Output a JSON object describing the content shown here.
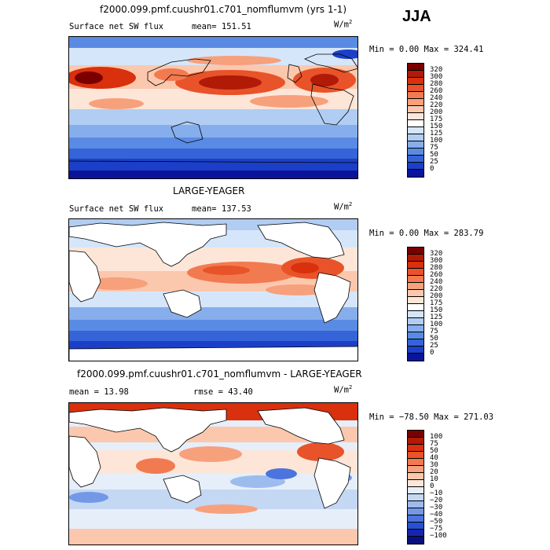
{
  "season": "JJA",
  "panels": [
    {
      "title": "f2000.099.pmf.cuushr01.c701_nomflumvm (yrs 1-1)",
      "variable": "Surface net SW flux",
      "stat1": "mean=  151.51",
      "stat2": "",
      "units": "W/m",
      "units_exp": "2",
      "minmax": "Min =    0.00 Max = 324.41",
      "land_masked": false,
      "colorbar_labels": [
        "320",
        "300",
        "280",
        "260",
        "240",
        "220",
        "200",
        "175",
        "150",
        "125",
        "100",
        "75",
        "50",
        "25",
        "0"
      ],
      "colors": [
        "#7a0000",
        "#b01a06",
        "#d9300e",
        "#e8532a",
        "#f27a50",
        "#f7a07c",
        "#fbc8ae",
        "#fde6d8",
        "#ffffff",
        "#d6e6fa",
        "#b1cdf3",
        "#87aeec",
        "#5a8be4",
        "#3464d8",
        "#1b3fc8",
        "#0a149a"
      ]
    },
    {
      "title": "LARGE-YEAGER",
      "variable": "Surface net SW flux",
      "stat1": "mean=  137.53",
      "stat2": "",
      "units": "W/m",
      "units_exp": "2",
      "minmax": "Min =    0.00 Max = 283.79",
      "land_masked": true,
      "colorbar_labels": [
        "320",
        "300",
        "280",
        "260",
        "240",
        "220",
        "200",
        "175",
        "150",
        "125",
        "100",
        "75",
        "50",
        "25",
        "0"
      ],
      "colors": [
        "#7a0000",
        "#b01a06",
        "#d9300e",
        "#e8532a",
        "#f27a50",
        "#f7a07c",
        "#fbc8ae",
        "#fde6d8",
        "#ffffff",
        "#d6e6fa",
        "#b1cdf3",
        "#87aeec",
        "#5a8be4",
        "#3464d8",
        "#1b3fc8",
        "#0a149a"
      ]
    },
    {
      "title": "f2000.099.pmf.cuushr01.c701_nomflumvm - LARGE-YEAGER",
      "variable": "",
      "stat1": "mean =   13.98",
      "stat2": "rmse =   43.40",
      "units": "W/m",
      "units_exp": "2",
      "minmax": "Min = −78.50 Max = 271.03",
      "land_masked": true,
      "colorbar_labels": [
        "100",
        "75",
        "50",
        "40",
        "30",
        "20",
        "10",
        "0",
        "−10",
        "−20",
        "−30",
        "−40",
        "−50",
        "−75",
        "−100"
      ],
      "colors": [
        "#7a0000",
        "#b01a06",
        "#d9300e",
        "#e8532a",
        "#f27a50",
        "#f7a07c",
        "#fbc8ae",
        "#fde6d8",
        "#e6eefa",
        "#c4d8f4",
        "#9dbcee",
        "#7399e6",
        "#4c74dc",
        "#2a4fd0",
        "#1527b0",
        "#0a0f80"
      ]
    }
  ]
}
